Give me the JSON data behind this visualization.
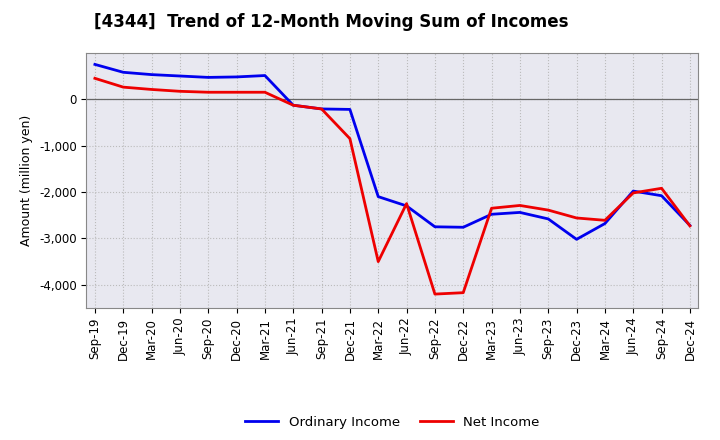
{
  "title": "[4344]  Trend of 12-Month Moving Sum of Incomes",
  "ylabel": "Amount (million yen)",
  "x_labels": [
    "Sep-19",
    "Dec-19",
    "Mar-20",
    "Jun-20",
    "Sep-20",
    "Dec-20",
    "Mar-21",
    "Jun-21",
    "Sep-21",
    "Dec-21",
    "Mar-22",
    "Jun-22",
    "Sep-22",
    "Dec-22",
    "Mar-23",
    "Jun-23",
    "Sep-23",
    "Dec-23",
    "Mar-24",
    "Jun-24",
    "Sep-24",
    "Dec-24"
  ],
  "ordinary_income": [
    750,
    580,
    530,
    500,
    470,
    480,
    510,
    -130,
    -210,
    -220,
    -2100,
    -2300,
    -2750,
    -2760,
    -2480,
    -2440,
    -2580,
    -3020,
    -2680,
    -1980,
    -2080,
    -2720
  ],
  "net_income": [
    450,
    260,
    210,
    170,
    150,
    150,
    150,
    -130,
    -210,
    -850,
    -3500,
    -2250,
    -4200,
    -4170,
    -2350,
    -2290,
    -2390,
    -2560,
    -2610,
    -2020,
    -1920,
    -2730
  ],
  "ordinary_color": "#0000EE",
  "net_color": "#EE0000",
  "bg_color": "#FFFFFF",
  "plot_bg_color": "#E8E8F0",
  "ylim": [
    -4500,
    1000
  ],
  "yticks": [
    -4000,
    -3000,
    -2000,
    -1000,
    0
  ],
  "grid_color": "#BBBBBB",
  "line_width": 2.0,
  "title_fontsize": 12,
  "label_fontsize": 9,
  "tick_fontsize": 8.5,
  "legend_fontsize": 9.5
}
